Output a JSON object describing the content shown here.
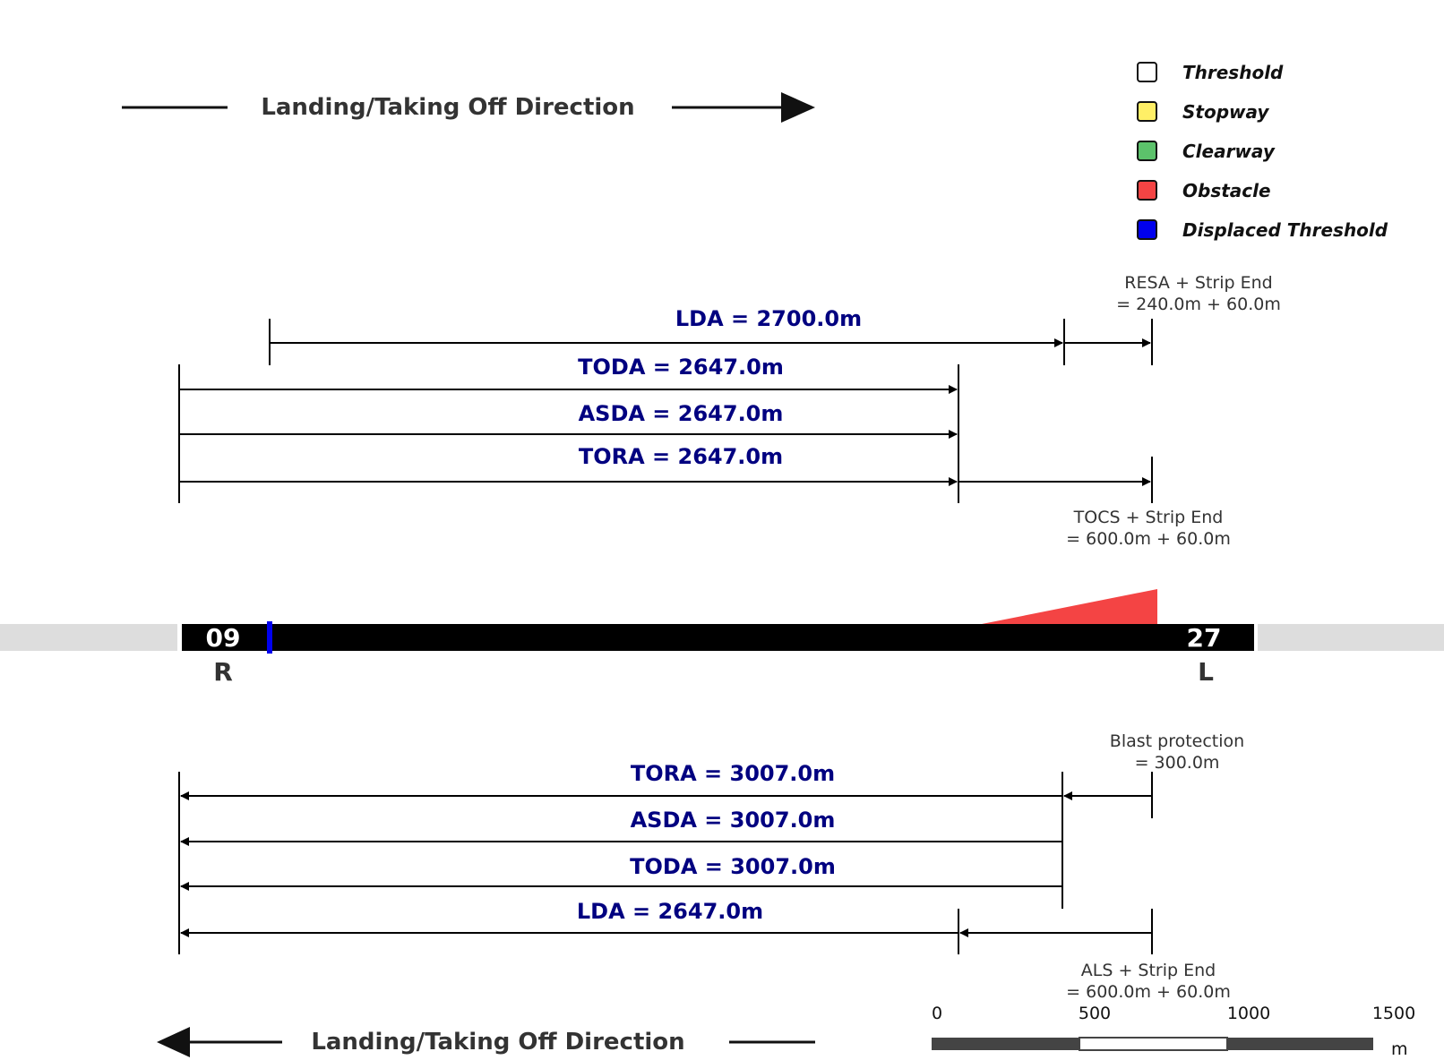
{
  "direction_top": {
    "label": "Landing/Taking Off Direction",
    "arrow": "right"
  },
  "direction_bottom": {
    "label": "Landing/Taking Off Direction",
    "arrow": "left"
  },
  "legend": [
    {
      "label": "Threshold",
      "color": "#ffffff"
    },
    {
      "label": "Stopway",
      "color": "#ffef66"
    },
    {
      "label": "Clearway",
      "color": "#5cc26b"
    },
    {
      "label": "Obstacle",
      "color": "#f44444"
    },
    {
      "label": "Displaced Threshold",
      "color": "#0000ee"
    }
  ],
  "top_distances": {
    "lda": "LDA = 2700.0m",
    "toda": "TODA = 2647.0m",
    "asda": "ASDA = 2647.0m",
    "tora": "TORA = 2647.0m",
    "resa_note_line1": "RESA + Strip End",
    "resa_note_line2": "= 240.0m + 60.0m",
    "tocs_note_line1": "TOCS + Strip End",
    "tocs_note_line2": "= 600.0m + 60.0m"
  },
  "runway": {
    "left_number": "09",
    "right_number": "27",
    "left_side": "R",
    "right_side": "L",
    "colors": {
      "runway": "#000000",
      "shoulder": "#dddddd",
      "obstacle": "#f44444",
      "displaced_threshold": "#0000ee"
    }
  },
  "bottom_distances": {
    "tora": "TORA = 3007.0m",
    "asda": "ASDA = 3007.0m",
    "toda": "TODA = 3007.0m",
    "lda": "LDA = 2647.0m",
    "blast_note_line1": "Blast protection",
    "blast_note_line2": "= 300.0m",
    "als_note_line1": "ALS + Strip End",
    "als_note_line2": "= 600.0m + 60.0m"
  },
  "scale_bar": {
    "ticks": [
      "0",
      "500",
      "1000",
      "1500"
    ],
    "unit": "m"
  }
}
